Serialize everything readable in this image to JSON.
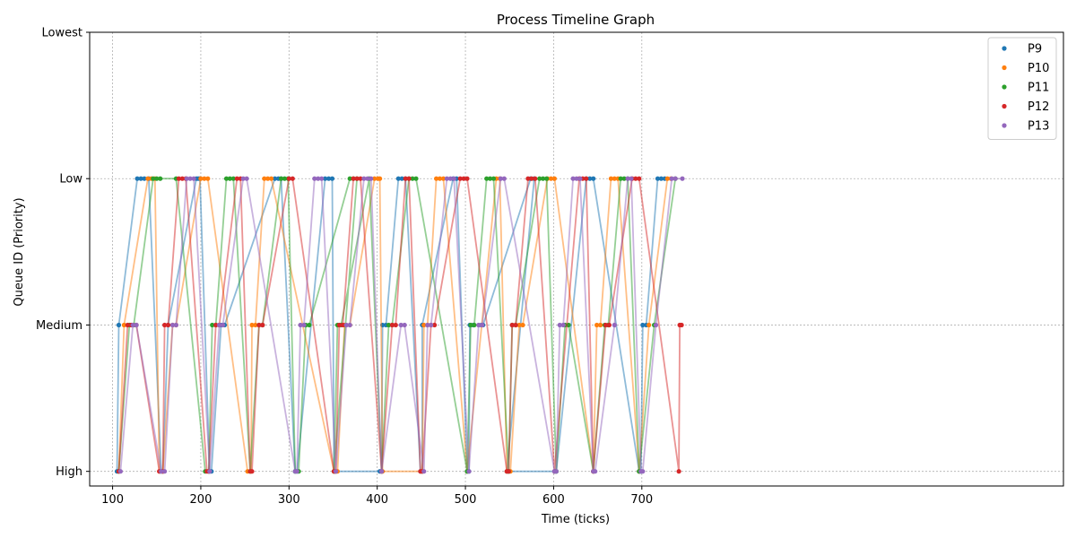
{
  "chart_data": {
    "type": "line",
    "title": "Process Timeline Graph",
    "xlabel": "Time (ticks)",
    "ylabel": "Queue ID (Priority)",
    "xlim": [
      74,
      1178
    ],
    "x_ticks": [
      100,
      200,
      300,
      400,
      500,
      600,
      700
    ],
    "ylim": [
      -0.1,
      3.0
    ],
    "y_ticks": [
      {
        "value": 0,
        "label": "High"
      },
      {
        "value": 1,
        "label": "Medium"
      },
      {
        "value": 2,
        "label": "Low"
      },
      {
        "value": 3,
        "label": "Lowest"
      }
    ],
    "grid": true,
    "legend_position": "top-right",
    "series": [
      {
        "name": "P9",
        "color": "#1f77b4",
        "points": [
          [
            105,
            0
          ],
          [
            107,
            1
          ],
          [
            128,
            2
          ],
          [
            132,
            2
          ],
          [
            136,
            2
          ],
          [
            141,
            2
          ],
          [
            155,
            0
          ],
          [
            157,
            0
          ],
          [
            163,
            1
          ],
          [
            195,
            2
          ],
          [
            197,
            2
          ],
          [
            199,
            2
          ],
          [
            210,
            0
          ],
          [
            212,
            0
          ],
          [
            223,
            1
          ],
          [
            227,
            1
          ],
          [
            284,
            2
          ],
          [
            288,
            2
          ],
          [
            291,
            2
          ],
          [
            307,
            0
          ],
          [
            309,
            0
          ],
          [
            341,
            2
          ],
          [
            345,
            2
          ],
          [
            349,
            2
          ],
          [
            351,
            0
          ],
          [
            353,
            0
          ],
          [
            403,
            0
          ],
          [
            405,
            0
          ],
          [
            406,
            1
          ],
          [
            410,
            1
          ],
          [
            424,
            2
          ],
          [
            428,
            2
          ],
          [
            432,
            2
          ],
          [
            449,
            0
          ],
          [
            451,
            0
          ],
          [
            451,
            1
          ],
          [
            486,
            2
          ],
          [
            490,
            2
          ],
          [
            502,
            0
          ],
          [
            504,
            0
          ],
          [
            505,
            1
          ],
          [
            509,
            1
          ],
          [
            518,
            1
          ],
          [
            520,
            1
          ],
          [
            574,
            2
          ],
          [
            578,
            2
          ],
          [
            547,
            0
          ],
          [
            549,
            0
          ],
          [
            601,
            0
          ],
          [
            603,
            0
          ],
          [
            637,
            2
          ],
          [
            641,
            2
          ],
          [
            645,
            2
          ],
          [
            697,
            0
          ],
          [
            699,
            0
          ],
          [
            701,
            1
          ],
          [
            705,
            1
          ],
          [
            718,
            2
          ],
          [
            722,
            2
          ],
          [
            726,
            2
          ]
        ]
      },
      {
        "name": "P10",
        "color": "#ff7f0e",
        "points": [
          [
            107,
            0
          ],
          [
            113,
            1
          ],
          [
            140,
            2
          ],
          [
            144,
            2
          ],
          [
            148,
            2
          ],
          [
            153,
            0
          ],
          [
            157,
            0
          ],
          [
            168,
            1
          ],
          [
            172,
            1
          ],
          [
            200,
            2
          ],
          [
            204,
            2
          ],
          [
            208,
            2
          ],
          [
            253,
            0
          ],
          [
            257,
            0
          ],
          [
            258,
            1
          ],
          [
            262,
            1
          ],
          [
            272,
            2
          ],
          [
            276,
            2
          ],
          [
            280,
            2
          ],
          [
            351,
            0
          ],
          [
            355,
            0
          ],
          [
            363,
            1
          ],
          [
            369,
            1
          ],
          [
            397,
            2
          ],
          [
            401,
            2
          ],
          [
            403,
            2
          ],
          [
            406,
            0
          ],
          [
            451,
            0
          ],
          [
            453,
            1
          ],
          [
            457,
            1
          ],
          [
            467,
            2
          ],
          [
            471,
            2
          ],
          [
            475,
            2
          ],
          [
            502,
            0
          ],
          [
            535,
            2
          ],
          [
            539,
            2
          ],
          [
            547,
            0
          ],
          [
            551,
            0
          ],
          [
            561,
            1
          ],
          [
            565,
            1
          ],
          [
            593,
            2
          ],
          [
            597,
            2
          ],
          [
            601,
            2
          ],
          [
            645,
            0
          ],
          [
            649,
            1
          ],
          [
            653,
            1
          ],
          [
            665,
            2
          ],
          [
            669,
            2
          ],
          [
            673,
            2
          ],
          [
            697,
            0
          ],
          [
            708,
            1
          ],
          [
            729,
            2
          ],
          [
            733,
            2
          ]
        ]
      },
      {
        "name": "P11",
        "color": "#2ca02c",
        "points": [
          [
            107,
            0
          ],
          [
            119,
            1
          ],
          [
            124,
            1
          ],
          [
            146,
            2
          ],
          [
            150,
            2
          ],
          [
            154,
            2
          ],
          [
            172,
            2
          ],
          [
            205,
            0
          ],
          [
            209,
            0
          ],
          [
            213,
            1
          ],
          [
            217,
            1
          ],
          [
            229,
            2
          ],
          [
            233,
            2
          ],
          [
            237,
            2
          ],
          [
            256,
            0
          ],
          [
            266,
            1
          ],
          [
            270,
            1
          ],
          [
            291,
            2
          ],
          [
            295,
            2
          ],
          [
            299,
            2
          ],
          [
            307,
            0
          ],
          [
            311,
            0
          ],
          [
            319,
            1
          ],
          [
            323,
            1
          ],
          [
            369,
            2
          ],
          [
            373,
            2
          ],
          [
            377,
            2
          ],
          [
            351,
            0
          ],
          [
            355,
            1
          ],
          [
            359,
            1
          ],
          [
            391,
            2
          ],
          [
            405,
            0
          ],
          [
            413,
            1
          ],
          [
            417,
            1
          ],
          [
            436,
            2
          ],
          [
            440,
            2
          ],
          [
            444,
            2
          ],
          [
            502,
            0
          ],
          [
            506,
            1
          ],
          [
            510,
            1
          ],
          [
            524,
            2
          ],
          [
            528,
            2
          ],
          [
            532,
            2
          ],
          [
            549,
            0
          ],
          [
            553,
            1
          ],
          [
            557,
            1
          ],
          [
            584,
            2
          ],
          [
            588,
            2
          ],
          [
            592,
            2
          ],
          [
            603,
            0
          ],
          [
            613,
            1
          ],
          [
            617,
            1
          ],
          [
            645,
            0
          ],
          [
            658,
            1
          ],
          [
            662,
            1
          ],
          [
            676,
            2
          ],
          [
            680,
            2
          ],
          [
            684,
            2
          ],
          [
            697,
            0
          ],
          [
            714,
            1
          ],
          [
            738,
            2
          ]
        ]
      },
      {
        "name": "P12",
        "color": "#d62728",
        "points": [
          [
            107,
            0
          ],
          [
            117,
            1
          ],
          [
            121,
            1
          ],
          [
            127,
            1
          ],
          [
            153,
            0
          ],
          [
            157,
            0
          ],
          [
            159,
            1
          ],
          [
            163,
            1
          ],
          [
            175,
            2
          ],
          [
            179,
            2
          ],
          [
            183,
            2
          ],
          [
            207,
            0
          ],
          [
            209,
            0
          ],
          [
            217,
            1
          ],
          [
            221,
            1
          ],
          [
            241,
            2
          ],
          [
            245,
            2
          ],
          [
            256,
            0
          ],
          [
            258,
            0
          ],
          [
            266,
            1
          ],
          [
            270,
            1
          ],
          [
            300,
            2
          ],
          [
            304,
            2
          ],
          [
            351,
            0
          ],
          [
            353,
            0
          ],
          [
            357,
            1
          ],
          [
            361,
            1
          ],
          [
            373,
            2
          ],
          [
            377,
            2
          ],
          [
            381,
            2
          ],
          [
            405,
            0
          ],
          [
            417,
            1
          ],
          [
            421,
            1
          ],
          [
            432,
            2
          ],
          [
            436,
            2
          ],
          [
            449,
            0
          ],
          [
            451,
            0
          ],
          [
            461,
            1
          ],
          [
            465,
            1
          ],
          [
            494,
            2
          ],
          [
            498,
            2
          ],
          [
            502,
            2
          ],
          [
            547,
            0
          ],
          [
            549,
            0
          ],
          [
            553,
            1
          ],
          [
            557,
            1
          ],
          [
            571,
            2
          ],
          [
            575,
            2
          ],
          [
            579,
            2
          ],
          [
            601,
            0
          ],
          [
            629,
            2
          ],
          [
            633,
            2
          ],
          [
            637,
            2
          ],
          [
            645,
            0
          ],
          [
            659,
            1
          ],
          [
            663,
            1
          ],
          [
            689,
            2
          ],
          [
            693,
            2
          ],
          [
            697,
            2
          ],
          [
            742,
            0
          ],
          [
            743,
            1
          ],
          [
            745,
            1
          ]
        ]
      },
      {
        "name": "P13",
        "color": "#9467bd",
        "points": [
          [
            109,
            0
          ],
          [
            123,
            1
          ],
          [
            127,
            1
          ],
          [
            155,
            0
          ],
          [
            159,
            0
          ],
          [
            168,
            1
          ],
          [
            172,
            1
          ],
          [
            184,
            2
          ],
          [
            188,
            2
          ],
          [
            192,
            2
          ],
          [
            210,
            0
          ],
          [
            221,
            1
          ],
          [
            225,
            1
          ],
          [
            248,
            2
          ],
          [
            252,
            2
          ],
          [
            307,
            0
          ],
          [
            309,
            0
          ],
          [
            313,
            1
          ],
          [
            317,
            1
          ],
          [
            329,
            2
          ],
          [
            333,
            2
          ],
          [
            337,
            2
          ],
          [
            353,
            0
          ],
          [
            365,
            1
          ],
          [
            369,
            1
          ],
          [
            385,
            2
          ],
          [
            389,
            2
          ],
          [
            393,
            2
          ],
          [
            405,
            0
          ],
          [
            427,
            1
          ],
          [
            431,
            1
          ],
          [
            453,
            0
          ],
          [
            457,
            1
          ],
          [
            461,
            1
          ],
          [
            479,
            2
          ],
          [
            483,
            2
          ],
          [
            487,
            2
          ],
          [
            504,
            0
          ],
          [
            515,
            1
          ],
          [
            519,
            1
          ],
          [
            540,
            2
          ],
          [
            544,
            2
          ],
          [
            601,
            0
          ],
          [
            603,
            0
          ],
          [
            607,
            1
          ],
          [
            611,
            1
          ],
          [
            622,
            2
          ],
          [
            626,
            2
          ],
          [
            630,
            2
          ],
          [
            645,
            0
          ],
          [
            647,
            0
          ],
          [
            669,
            1
          ],
          [
            684,
            2
          ],
          [
            688,
            2
          ],
          [
            699,
            0
          ],
          [
            701,
            0
          ],
          [
            716,
            1
          ],
          [
            734,
            2
          ],
          [
            738,
            2
          ],
          [
            746,
            2
          ]
        ]
      }
    ]
  }
}
